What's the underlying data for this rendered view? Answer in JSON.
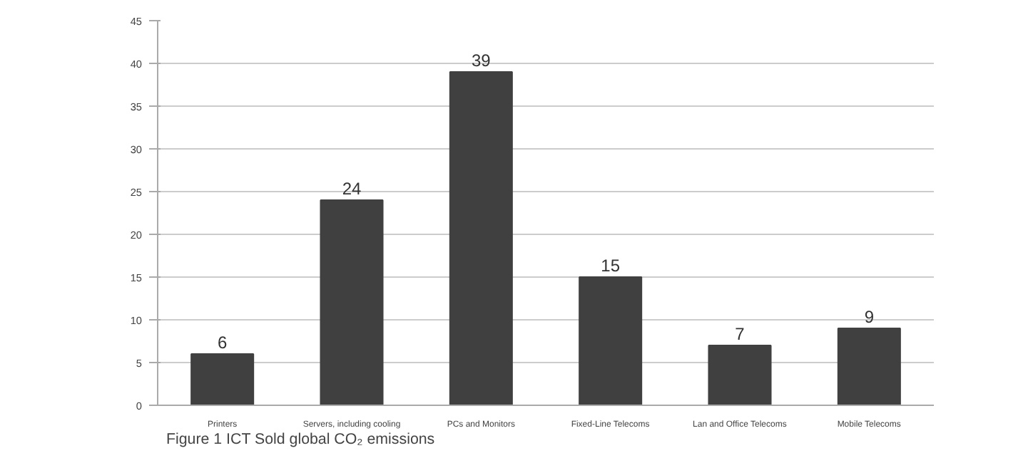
{
  "chart_data": {
    "type": "bar",
    "categories": [
      "Printers",
      "Servers, including cooling",
      "PCs and Monitors",
      "Fixed-Line Telecoms",
      "Lan and Office Telecoms",
      "Mobile Telecoms"
    ],
    "values": [
      6,
      24,
      39,
      15,
      7,
      9
    ],
    "color": "#404040",
    "data_labels": true,
    "ylim": [
      0,
      45
    ],
    "yticks": [
      0,
      5,
      10,
      15,
      20,
      25,
      30,
      35,
      40,
      45
    ],
    "grid": "y",
    "annotations": [
      "Figure 1 ICT Sold global CO₂ emissions"
    ]
  }
}
